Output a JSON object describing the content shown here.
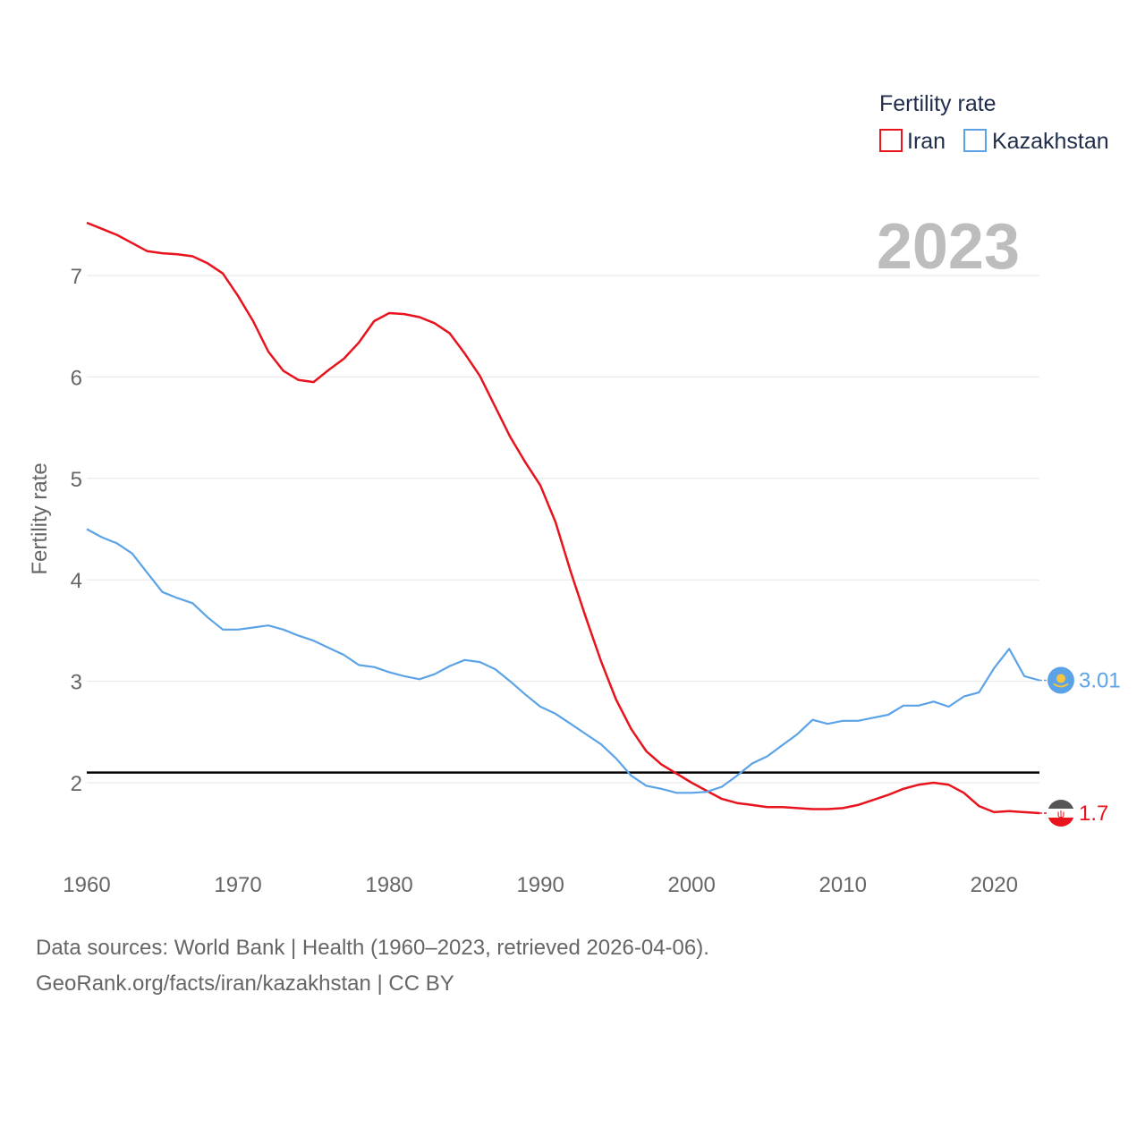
{
  "chart_data": {
    "type": "line",
    "ylabel": "Fertility rate",
    "xlabel": "",
    "legend_title": "Fertility rate",
    "year_label": "2023",
    "xlim": [
      1960,
      2023
    ],
    "ylim": [
      1.3,
      7.6
    ],
    "x_ticks": [
      1960,
      1970,
      1980,
      1990,
      2000,
      2010,
      2020
    ],
    "y_ticks": [
      2,
      3,
      4,
      5,
      6,
      7
    ],
    "reference_line": {
      "value": 2.1
    },
    "x": [
      1960,
      1961,
      1962,
      1963,
      1964,
      1965,
      1966,
      1967,
      1968,
      1969,
      1970,
      1971,
      1972,
      1973,
      1974,
      1975,
      1976,
      1977,
      1978,
      1979,
      1980,
      1981,
      1982,
      1983,
      1984,
      1985,
      1986,
      1987,
      1988,
      1989,
      1990,
      1991,
      1992,
      1993,
      1994,
      1995,
      1996,
      1997,
      1998,
      1999,
      2000,
      2001,
      2002,
      2003,
      2004,
      2005,
      2006,
      2007,
      2008,
      2009,
      2010,
      2011,
      2012,
      2013,
      2014,
      2015,
      2016,
      2017,
      2018,
      2019,
      2020,
      2021,
      2022,
      2023
    ],
    "series": [
      {
        "name": "Iran",
        "color": "#e8131d",
        "end_label": "1.7",
        "values": [
          7.52,
          7.46,
          7.4,
          7.32,
          7.24,
          7.22,
          7.21,
          7.19,
          7.12,
          7.02,
          6.8,
          6.55,
          6.25,
          6.06,
          5.97,
          5.95,
          6.07,
          6.18,
          6.34,
          6.55,
          6.63,
          6.62,
          6.59,
          6.53,
          6.43,
          6.23,
          6.01,
          5.71,
          5.41,
          5.16,
          4.93,
          4.57,
          4.08,
          3.63,
          3.2,
          2.82,
          2.53,
          2.31,
          2.18,
          2.09,
          2.0,
          1.92,
          1.84,
          1.8,
          1.78,
          1.76,
          1.76,
          1.75,
          1.74,
          1.74,
          1.75,
          1.78,
          1.83,
          1.88,
          1.94,
          1.98,
          2.0,
          1.98,
          1.9,
          1.77,
          1.71,
          1.72,
          1.71,
          1.7
        ]
      },
      {
        "name": "Kazakhstan",
        "color": "#5ba3e6",
        "end_label": "3.01",
        "values": [
          4.5,
          4.42,
          4.36,
          4.26,
          4.07,
          3.88,
          3.82,
          3.77,
          3.63,
          3.51,
          3.51,
          3.53,
          3.55,
          3.51,
          3.45,
          3.4,
          3.33,
          3.26,
          3.16,
          3.14,
          3.09,
          3.05,
          3.02,
          3.07,
          3.15,
          3.21,
          3.19,
          3.12,
          3.0,
          2.87,
          2.75,
          2.68,
          2.58,
          2.48,
          2.38,
          2.24,
          2.07,
          1.97,
          1.94,
          1.9,
          1.9,
          1.91,
          1.96,
          2.07,
          2.19,
          2.26,
          2.37,
          2.48,
          2.62,
          2.58,
          2.61,
          2.61,
          2.64,
          2.67,
          2.76,
          2.76,
          2.8,
          2.75,
          2.85,
          2.89,
          3.13,
          3.32,
          3.05,
          3.01
        ]
      }
    ]
  },
  "footer": {
    "line1": "Data sources: World Bank | Health (1960–2023, retrieved 2026-04-06).",
    "line2": "GeoRank.org/facts/iran/kazakhstan | CC BY"
  }
}
